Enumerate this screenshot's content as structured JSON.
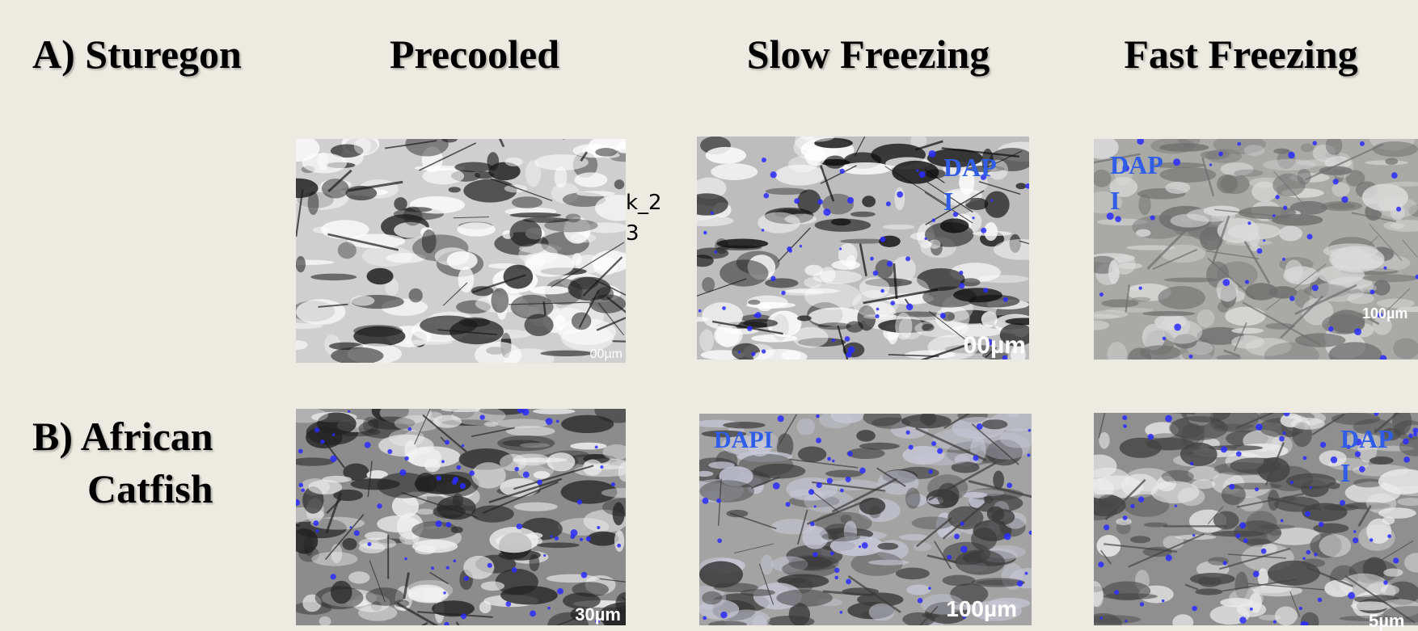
{
  "row_labels": [
    {
      "text": "A) Sturegon"
    },
    {
      "lines": [
        "B) African",
        "Catfish"
      ]
    }
  ],
  "column_headers": [
    "Precooled",
    "Slow Freezing",
    "Fast Freezing"
  ],
  "panels": [
    {
      "overlays": [
        "k_2",
        "3",
        "00µm"
      ]
    },
    {
      "overlays": [
        "DAP",
        "I",
        "00µm"
      ]
    },
    {
      "overlays": [
        "DAP",
        "I",
        "100µm"
      ]
    },
    {
      "overlays": [
        "30µm"
      ]
    },
    {
      "overlays": [
        "DAPI",
        "100µm"
      ]
    },
    {
      "overlays": [
        "DAP",
        "I",
        "5µm"
      ]
    }
  ]
}
